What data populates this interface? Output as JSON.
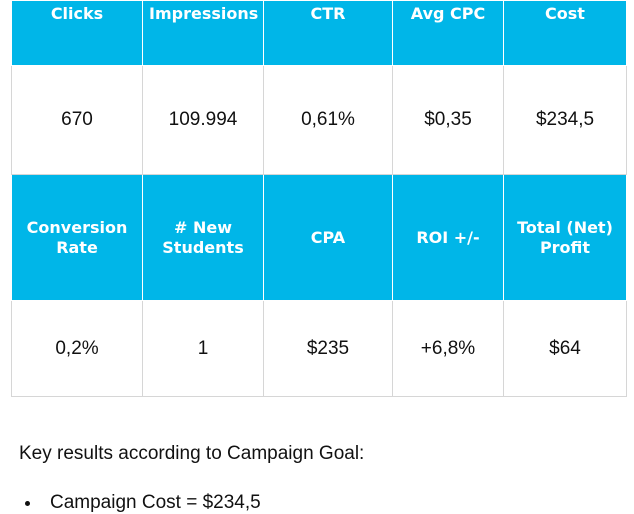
{
  "table": {
    "headers_row1": [
      "Clicks",
      "Impressions",
      "CTR",
      "Avg CPC",
      "Cost"
    ],
    "values_row1": [
      "670",
      "109.994",
      "0,61%",
      "$0,35",
      "$234,5"
    ],
    "headers_row2": [
      [
        "Conversion",
        "Rate"
      ],
      [
        "# New",
        "Students"
      ],
      [
        "CPA"
      ],
      [
        "ROI +/-"
      ],
      [
        "Total (Net)",
        "Profit"
      ]
    ],
    "values_row2": [
      "0,2%",
      "1",
      "$235",
      "+6,8%",
      "$64"
    ]
  },
  "summary": {
    "heading": "Key results according to Campaign Goal:",
    "items": [
      "Campaign Cost = $234,5"
    ]
  },
  "colors": {
    "header_background": "#00b6e8",
    "header_text": "#ffffff",
    "cell_border": "#d6d6d6"
  },
  "icons": {
    "list_bullet": "bullet-icon"
  }
}
